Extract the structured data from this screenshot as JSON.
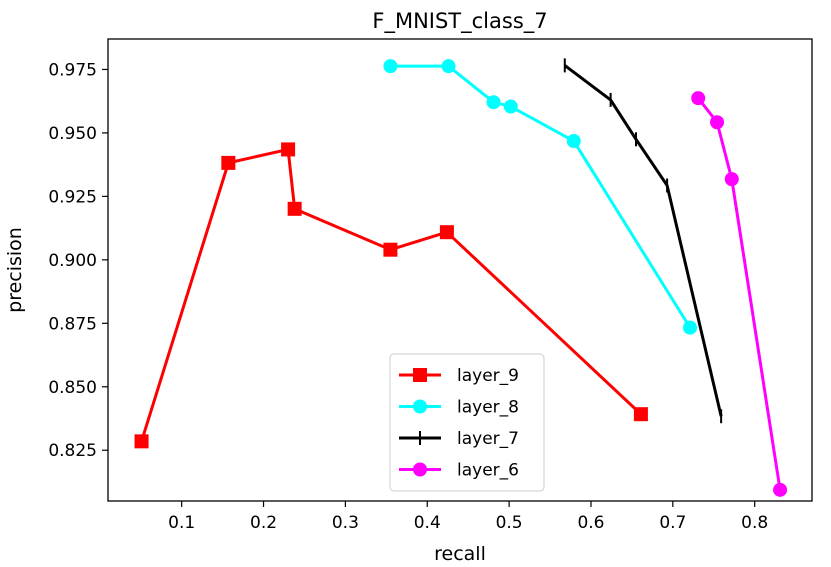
{
  "chart_data": {
    "type": "line",
    "title": "F_MNIST_class_7",
    "xlabel": "recall",
    "ylabel": "precision",
    "xlim": [
      0.01,
      0.87
    ],
    "ylim": [
      0.805,
      0.987
    ],
    "x_ticks": [
      0.1,
      0.2,
      0.3,
      0.4,
      0.5,
      0.6,
      0.7,
      0.8
    ],
    "x_tick_labels": [
      "0.1",
      "0.2",
      "0.3",
      "0.4",
      "0.5",
      "0.6",
      "0.7",
      "0.8"
    ],
    "y_ticks": [
      0.825,
      0.85,
      0.875,
      0.9,
      0.925,
      0.95,
      0.975
    ],
    "y_tick_labels": [
      "0.825",
      "0.850",
      "0.875",
      "0.900",
      "0.925",
      "0.950",
      "0.975"
    ],
    "grid": false,
    "legend_position": "lower-center",
    "series": [
      {
        "name": "layer_9",
        "color": "#ff0000",
        "marker": "square",
        "x": [
          0.051,
          0.157,
          0.23,
          0.238,
          0.355,
          0.424,
          0.661
        ],
        "y": [
          0.8285,
          0.9382,
          0.9435,
          0.9201,
          0.904,
          0.9109,
          0.8392
        ]
      },
      {
        "name": "layer_8",
        "color": "#00ffff",
        "marker": "circle",
        "x": [
          0.355,
          0.426,
          0.481,
          0.502,
          0.579,
          0.721
        ],
        "y": [
          0.9763,
          0.9763,
          0.9621,
          0.9604,
          0.9468,
          0.8733
        ]
      },
      {
        "name": "layer_7",
        "color": "#000000",
        "marker": "vline",
        "x": [
          0.568,
          0.624,
          0.655,
          0.693,
          0.759
        ],
        "y": [
          0.9766,
          0.963,
          0.9475,
          0.9293,
          0.8384
        ]
      },
      {
        "name": "layer_6",
        "color": "#ff00ff",
        "marker": "circle",
        "x": [
          0.731,
          0.754,
          0.772,
          0.831
        ],
        "y": [
          0.9637,
          0.9542,
          0.9318,
          0.8094
        ]
      }
    ]
  }
}
